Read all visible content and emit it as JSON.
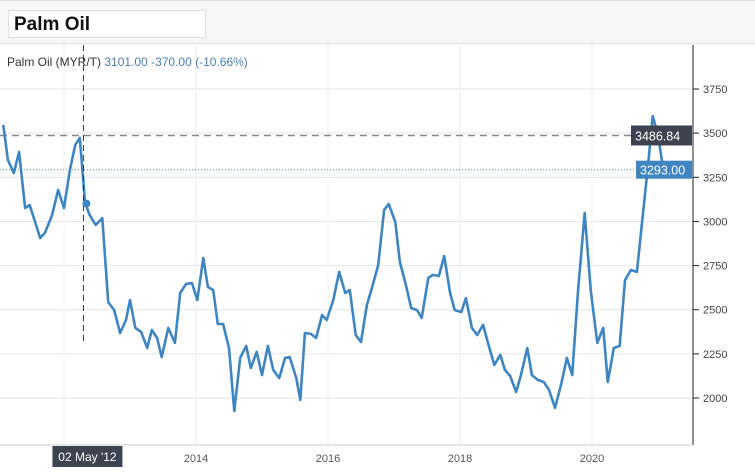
{
  "header": {
    "title": "Palm Oil"
  },
  "legend": {
    "series": "Palm Oil (MYR/T)",
    "value": "3101.00",
    "change": "-370.00 (-10.66%)"
  },
  "crosshair": {
    "date_label": "02 May '12",
    "price_label": "3486.84",
    "price": 3486.84
  },
  "last_price": {
    "label": "3293.00",
    "value": 3293
  },
  "colors": {
    "line": "#3f85c2",
    "crosshair_label_bg": "#3d4450",
    "last_label_bg": "#3f85c2"
  },
  "chart_data": {
    "type": "line",
    "title": "",
    "xlabel": "",
    "ylabel": "",
    "ylim": [
      1720,
      4000
    ],
    "xlim": [
      2011.05,
      2022.6
    ],
    "yticks": [
      "3750",
      "3500",
      "3250",
      "3000",
      "2750",
      "2500",
      "2250",
      "2000"
    ],
    "ytick_values": [
      3750,
      3500,
      3250,
      3000,
      2750,
      2500,
      2250,
      2000
    ],
    "xticks": [
      "2014",
      "2016",
      "2018",
      "2020"
    ],
    "xtick_values": [
      2014,
      2016,
      2018,
      2020
    ],
    "grid": true,
    "series": [
      {
        "x": [
          2011.08,
          2011.15,
          2011.24,
          2011.32,
          2011.41,
          2011.48,
          2011.64,
          2011.71,
          2011.82,
          2011.91,
          2012.0,
          2012.09,
          2012.17,
          2012.24,
          2012.32,
          2012.39,
          2012.48,
          2012.58,
          2012.67,
          2012.76,
          2012.85,
          2012.94,
          2013.0,
          2013.08,
          2013.17,
          2013.26,
          2013.33,
          2013.41,
          2013.48,
          2013.58,
          2013.68,
          2013.76,
          2013.85,
          2013.94,
          2014.02,
          2014.11,
          2014.18,
          2014.26,
          2014.33,
          2014.41,
          2014.5,
          2014.58,
          2014.67,
          2014.76,
          2014.83,
          2014.92,
          2015.0,
          2015.09,
          2015.17,
          2015.26,
          2015.35,
          2015.42,
          2015.52,
          2015.58,
          2015.65,
          2015.74,
          2015.82,
          2015.91,
          2015.98,
          2016.08,
          2016.17,
          2016.26,
          2016.33,
          2016.42,
          2016.5,
          2016.59,
          2016.67,
          2016.76,
          2016.85,
          2016.92,
          2017.02,
          2017.09,
          2017.18,
          2017.26,
          2017.35,
          2017.42,
          2017.52,
          2017.59,
          2017.68,
          2017.76,
          2017.85,
          2017.92,
          2018.02,
          2018.09,
          2018.18,
          2018.26,
          2018.35,
          2018.42,
          2018.52,
          2018.61,
          2018.68,
          2018.76,
          2018.85,
          2018.92,
          2019.02,
          2019.09,
          2019.18,
          2019.27,
          2019.35,
          2019.44,
          2019.53,
          2019.62,
          2019.7,
          2019.79,
          2019.89,
          2019.98,
          2020.08,
          2020.17,
          2020.24,
          2020.33,
          2020.42,
          2020.5,
          2020.59,
          2020.68,
          2020.77,
          2020.85,
          2020.92,
          2021.0,
          2021.08
        ],
        "y": [
          3546,
          3348,
          3274,
          3393,
          3076,
          3093,
          2906,
          2935,
          3036,
          3178,
          3076,
          3291,
          3433,
          3473,
          3104,
          3036,
          2980,
          3019,
          2543,
          2498,
          2368,
          2442,
          2555,
          2397,
          2374,
          2283,
          2385,
          2340,
          2232,
          2397,
          2312,
          2595,
          2646,
          2651,
          2555,
          2793,
          2629,
          2612,
          2419,
          2419,
          2283,
          1927,
          2227,
          2295,
          2170,
          2261,
          2130,
          2295,
          2159,
          2113,
          2227,
          2232,
          2113,
          1989,
          2368,
          2363,
          2340,
          2470,
          2442,
          2555,
          2714,
          2595,
          2612,
          2357,
          2317,
          2527,
          2629,
          2753,
          3065,
          3099,
          2997,
          2770,
          2640,
          2510,
          2498,
          2453,
          2680,
          2697,
          2691,
          2804,
          2595,
          2498,
          2487,
          2566,
          2397,
          2357,
          2414,
          2317,
          2187,
          2244,
          2159,
          2125,
          2034,
          2125,
          2283,
          2130,
          2102,
          2091,
          2045,
          1944,
          2074,
          2227,
          2130,
          2612,
          3048,
          2612,
          2312,
          2397,
          2091,
          2283,
          2295,
          2668,
          2725,
          2714,
          3036,
          3320,
          3597,
          3490,
          3293
        ]
      }
    ],
    "highlight_point": {
      "x": 2012.34,
      "y": 3101
    }
  }
}
